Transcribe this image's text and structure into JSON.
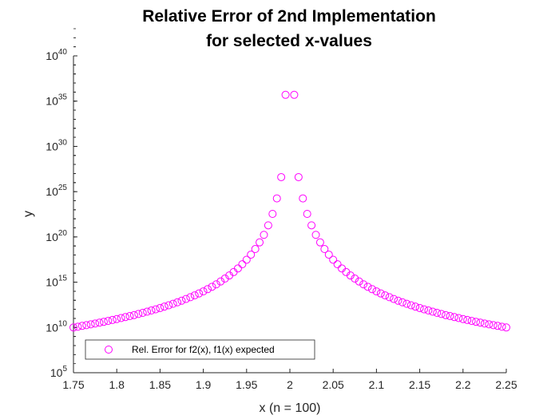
{
  "chart_data": {
    "type": "scatter",
    "title": [
      "Relative Error of 2nd Implementation",
      "for selected x-values"
    ],
    "xlabel": "x (n = 100)",
    "ylabel": "y",
    "xlim": [
      1.75,
      2.25
    ],
    "ylim": [
      100000.0,
      1e+40
    ],
    "yscale": "log",
    "x_ticks": [
      "1.75",
      "1.8",
      "1.85",
      "1.9",
      "1.95",
      "2",
      "2.05",
      "2.1",
      "2.15",
      "2.2",
      "2.25"
    ],
    "y_ticks": [
      {
        "base": "10",
        "exp": "5"
      },
      {
        "base": "10",
        "exp": "10"
      },
      {
        "base": "10",
        "exp": "15"
      },
      {
        "base": "10",
        "exp": "20"
      },
      {
        "base": "10",
        "exp": "25"
      },
      {
        "base": "10",
        "exp": "30"
      },
      {
        "base": "10",
        "exp": "35"
      },
      {
        "base": "10",
        "exp": "40"
      }
    ],
    "grid": false,
    "legend_position": "bottom-left",
    "marker": "open-circle",
    "color": "#ff00ff",
    "series": [
      {
        "name": "Rel. Error for f2(x), f1(x) expected",
        "x": [
          1.75,
          1.755,
          1.76,
          1.765,
          1.77,
          1.775,
          1.78,
          1.785,
          1.79,
          1.795,
          1.8,
          1.805,
          1.81,
          1.815,
          1.82,
          1.825,
          1.83,
          1.835,
          1.84,
          1.845,
          1.85,
          1.855,
          1.86,
          1.865,
          1.87,
          1.875,
          1.88,
          1.885,
          1.89,
          1.895,
          1.9,
          1.905,
          1.91,
          1.915,
          1.92,
          1.925,
          1.93,
          1.935,
          1.94,
          1.945,
          1.95,
          1.955,
          1.96,
          1.965,
          1.97,
          1.975,
          1.98,
          1.985,
          1.99,
          1.995,
          2.005,
          2.01,
          2.015,
          2.02,
          2.025,
          2.03,
          2.035,
          2.04,
          2.045,
          2.05,
          2.055,
          2.06,
          2.065,
          2.07,
          2.075,
          2.08,
          2.085,
          2.09,
          2.095,
          2.1,
          2.105,
          2.11,
          2.115,
          2.12,
          2.125,
          2.13,
          2.135,
          2.14,
          2.145,
          2.15,
          2.155,
          2.16,
          2.165,
          2.17,
          2.175,
          2.18,
          2.185,
          2.19,
          2.195,
          2.2,
          2.205,
          2.21,
          2.215,
          2.22,
          2.225,
          2.23,
          2.235,
          2.24,
          2.245,
          2.25
        ],
        "y": [
          10000000000.0,
          12000000000.0,
          15000000000.0,
          18000000000.0,
          22000000000.0,
          27000000000.0,
          34000000000.0,
          42000000000.0,
          53000000000.0,
          67000000000.0,
          85000000000.0,
          110000000000.0,
          140000000000.0,
          180000000000.0,
          230000000000.0,
          310000000000.0,
          410000000000.0,
          550000000000.0,
          750000000000.0,
          1000000000000.0,
          1400000000000.0,
          2000000000000.0,
          2800000000000.0,
          4100000000000.0,
          6000000000000.0,
          9000000000000.0,
          14000000000000.0,
          22000000000000.0,
          35000000000000.0,
          57000000000000.0,
          97000000000000.0,
          170000000000000.0,
          310000000000000.0,
          580000000000000.0,
          1200000000000000.0,
          2500000000000000.0,
          5500000000000000.0,
          1.3e+16,
          3.3e+16,
          9.5e+16,
          3e+17,
          1.1e+18,
          4.6e+18,
          2.5e+19,
          1.7e+20,
          1.9e+21,
          3.5e+22,
          1.8e+24,
          4e+26,
          5e+35,
          5e+35,
          4e+26,
          1.8e+24,
          3.5e+22,
          1.9e+21,
          1.7e+20,
          2.5e+19,
          4.6e+18,
          1.1e+18,
          3e+17,
          9.5e+16,
          3.3e+16,
          1.3e+16,
          5500000000000000.0,
          2500000000000000.0,
          1200000000000000.0,
          580000000000000.0,
          310000000000000.0,
          170000000000000.0,
          97000000000000.0,
          57000000000000.0,
          35000000000000.0,
          22000000000000.0,
          14000000000000.0,
          9000000000000.0,
          6000000000000.0,
          4100000000000.0,
          2800000000000.0,
          2000000000000.0,
          1400000000000.0,
          1000000000000.0,
          750000000000.0,
          550000000000.0,
          410000000000.0,
          310000000000.0,
          230000000000.0,
          180000000000.0,
          140000000000.0,
          110000000000.0,
          85000000000.0,
          67000000000.0,
          53000000000.0,
          42000000000.0,
          34000000000.0,
          27000000000.0,
          22000000000.0,
          18000000000.0,
          15000000000.0,
          12000000000.0,
          10000000000.0
        ]
      }
    ]
  }
}
